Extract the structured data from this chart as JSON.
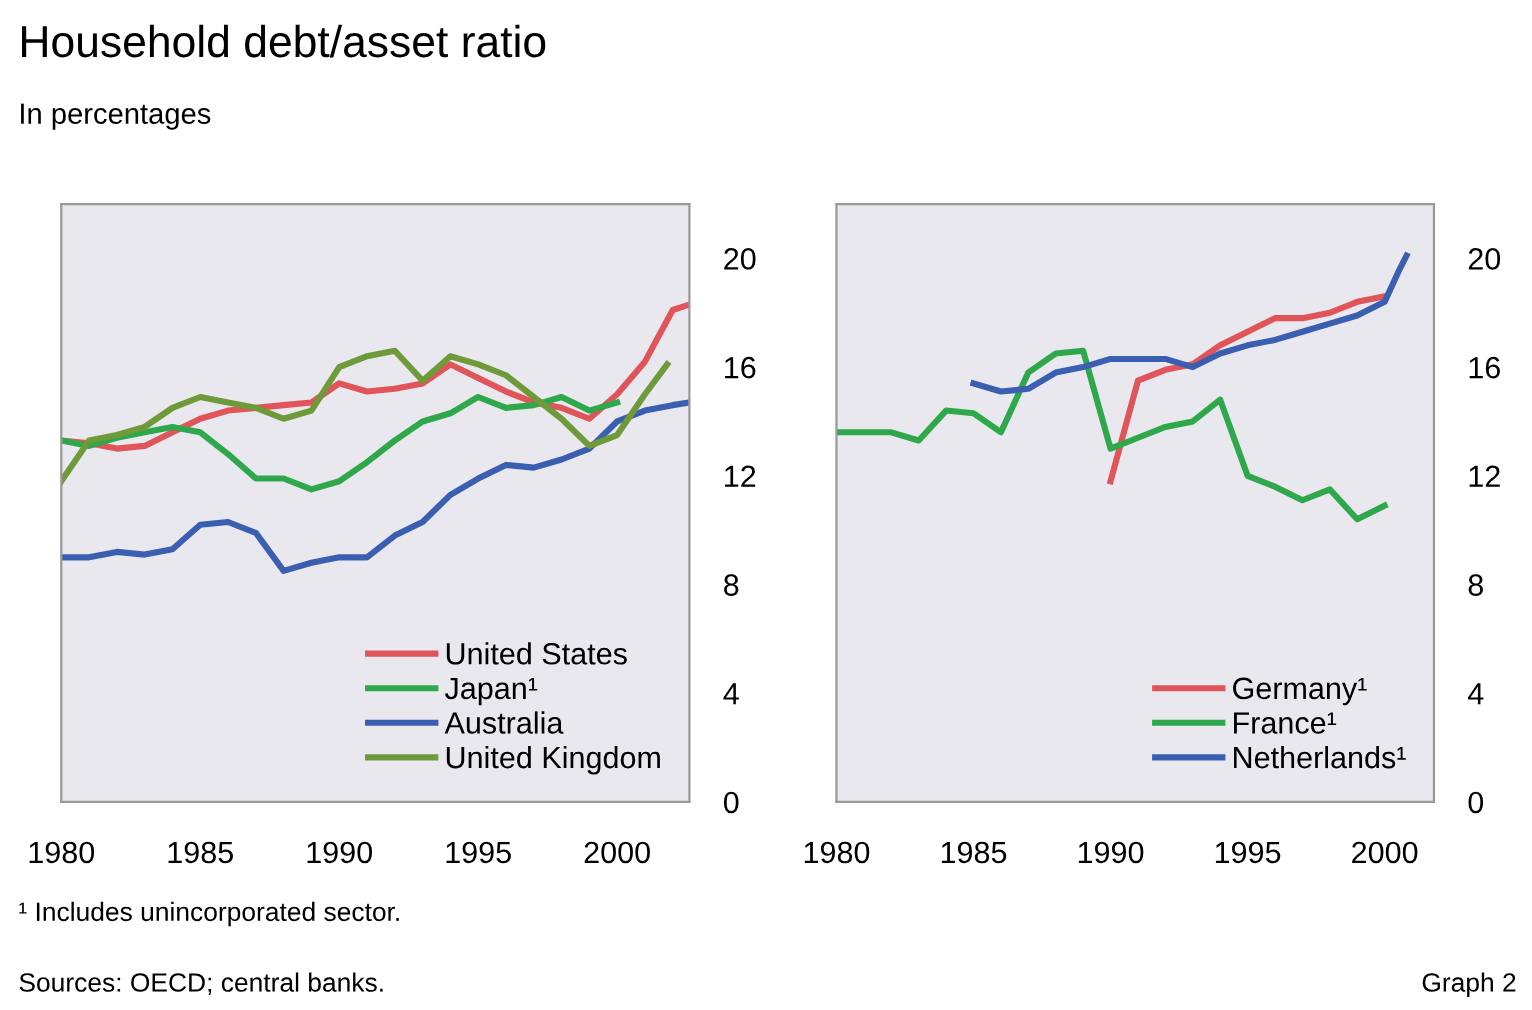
{
  "chart_data": [
    {
      "type": "line",
      "title": "Household debt/asset ratio",
      "subtitle": "In percentages",
      "series": [
        {
          "name": "United States",
          "color": "#e0555a",
          "x": [
            1980,
            1981,
            1982,
            1983,
            1984,
            1985,
            1986,
            1987,
            1988,
            1989,
            1990,
            1991,
            1992,
            1993,
            1994,
            1995,
            1996,
            1997,
            1998,
            1999,
            2000,
            2001,
            2002,
            2002.6
          ],
          "values": [
            13.3,
            13.2,
            13.0,
            13.1,
            13.6,
            14.1,
            14.4,
            14.5,
            14.6,
            14.7,
            15.4,
            15.1,
            15.2,
            15.4,
            16.1,
            15.6,
            15.1,
            14.7,
            14.5,
            14.1,
            15.0,
            16.2,
            18.1,
            18.3
          ]
        },
        {
          "name": "Japan¹",
          "color": "#2ea84a",
          "x": [
            1980,
            1981,
            1982,
            1983,
            1984,
            1985,
            1986,
            1987,
            1988,
            1989,
            1990,
            1991,
            1992,
            1993,
            1994,
            1995,
            1996,
            1997,
            1998,
            1999,
            2000
          ],
          "values": [
            13.3,
            13.1,
            13.4,
            13.6,
            13.8,
            13.6,
            12.8,
            11.9,
            11.9,
            11.5,
            11.8,
            12.5,
            13.3,
            14.0,
            14.3,
            14.9,
            14.5,
            14.6,
            14.9,
            14.4,
            14.7
          ]
        },
        {
          "name": "Australia",
          "color": "#3a5fb0",
          "x": [
            1980,
            1981,
            1982,
            1983,
            1984,
            1985,
            1986,
            1987,
            1988,
            1989,
            1990,
            1991,
            1992,
            1993,
            1994,
            1995,
            1996,
            1997,
            1998,
            1999,
            2000,
            2001,
            2002,
            2002.6
          ],
          "values": [
            9.0,
            9.0,
            9.2,
            9.1,
            9.3,
            10.2,
            10.3,
            9.9,
            8.5,
            8.8,
            9.0,
            9.0,
            9.8,
            10.3,
            11.3,
            11.9,
            12.4,
            12.3,
            12.6,
            13.0,
            14.0,
            14.4,
            14.6,
            14.7
          ]
        },
        {
          "name": "United Kingdom",
          "color": "#6f9a3a",
          "x": [
            1980,
            1981,
            1982,
            1983,
            1984,
            1985,
            1986,
            1987,
            1988,
            1989,
            1990,
            1991,
            1992,
            1993,
            1994,
            1995,
            1996,
            1997,
            1998,
            1999,
            2000,
            2001,
            2001.8
          ],
          "values": [
            11.8,
            13.3,
            13.5,
            13.8,
            14.5,
            14.9,
            14.7,
            14.5,
            14.1,
            14.4,
            16.0,
            16.4,
            16.6,
            15.5,
            16.4,
            16.1,
            15.7,
            14.9,
            14.1,
            13.1,
            13.5,
            15.0,
            16.1
          ]
        }
      ],
      "xlim": [
        1980,
        2002.6
      ],
      "xticks": [
        1980,
        1985,
        1990,
        1995,
        2000
      ],
      "ylim": [
        0,
        22
      ],
      "yticks": [
        0,
        4,
        8,
        12,
        16,
        20
      ],
      "grid": false,
      "legend": "bottom right",
      "line_style": "solid",
      "marker": "none"
    },
    {
      "type": "line",
      "series": [
        {
          "name": "Germany¹",
          "color": "#e0555a",
          "x": [
            1990,
            1991,
            1992,
            1993,
            1994,
            1995,
            1996,
            1997,
            1998,
            1999,
            2000
          ],
          "values": [
            11.8,
            15.5,
            15.9,
            16.1,
            16.8,
            17.3,
            17.8,
            17.8,
            18.0,
            18.4,
            18.6
          ]
        },
        {
          "name": "France¹",
          "color": "#2ea84a",
          "x": [
            1980,
            1981,
            1982,
            1983,
            1984,
            1985,
            1986,
            1987,
            1988,
            1989,
            1990,
            1991,
            1992,
            1993,
            1994,
            1995,
            1996,
            1997,
            1998,
            1999,
            2000
          ],
          "values": [
            13.6,
            13.6,
            13.6,
            13.3,
            14.4,
            14.3,
            13.6,
            15.8,
            16.5,
            16.6,
            13.0,
            13.4,
            13.8,
            14.0,
            14.8,
            12.0,
            11.6,
            11.1,
            11.5,
            10.4,
            10.9
          ]
        },
        {
          "name": "Netherlands¹",
          "color": "#3a5fb0",
          "x": [
            1985,
            1986,
            1987,
            1988,
            1989,
            1990,
            1991,
            1992,
            1993,
            1994,
            1995,
            1996,
            1997,
            1998,
            1999,
            2000,
            2000.5,
            2000.8
          ],
          "values": [
            15.4,
            15.1,
            15.2,
            15.8,
            16.0,
            16.3,
            16.3,
            16.3,
            16.0,
            16.5,
            16.8,
            17.0,
            17.3,
            17.6,
            17.9,
            18.4,
            19.5,
            20.1
          ]
        }
      ],
      "xlim": [
        1980,
        2001.8
      ],
      "xticks": [
        1980,
        1985,
        1990,
        1995,
        2000
      ],
      "ylim": [
        0,
        22
      ],
      "yticks": [
        0,
        4,
        8,
        12,
        16,
        20
      ],
      "grid": false,
      "legend": "bottom right",
      "line_style": "solid",
      "marker": "none",
      "annotations": [
        "¹ Includes unincorporated sector.",
        "Sources: OECD; central banks.",
        "Graph 2"
      ]
    }
  ]
}
